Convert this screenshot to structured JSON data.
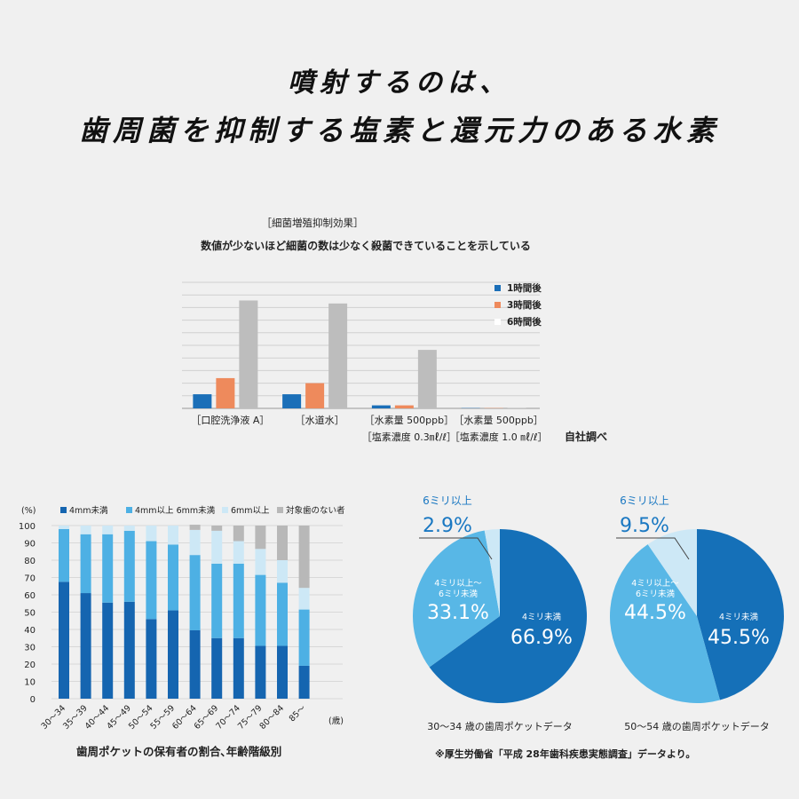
{
  "headline": {
    "line1": "噴射するのは、",
    "line2": "歯周菌を抑制する塩素と還元力のある水素"
  },
  "chart_data": [
    {
      "type": "bar",
      "title": "［細菌増殖抑制効果］",
      "subtitle": "数値が少ないほど細菌の数は少なく殺菌できていることを示している",
      "categories": [
        "［口腔洗浄液 A］",
        "［水道水］",
        "［水素量 500ppb］［塩素濃度 0.3㎖/ℓ］",
        "［水素量 500ppb］［塩素濃度 1.0 ㎖/ℓ］"
      ],
      "category_lines": [
        [
          "［口腔洗浄液 A］"
        ],
        [
          "［水道水］"
        ],
        [
          "［水素量 500ppb］",
          "［塩素濃度 0.3㎖/ℓ］"
        ],
        [
          "［水素量 500ppb］",
          "［塩素濃度 1.0 ㎖/ℓ］"
        ]
      ],
      "series": [
        {
          "name": "1時間後",
          "values": [
            14,
            14,
            3,
            0.3
          ],
          "color": "#1b6fb8"
        },
        {
          "name": "3時間後",
          "values": [
            30,
            25,
            3,
            0.3
          ],
          "color": "#ee8a5c"
        },
        {
          "name": "6時間後",
          "values": [
            107,
            104,
            58,
            0.5
          ],
          "color": "#bdbdbd"
        }
      ],
      "ylim": [
        0,
        125
      ],
      "gridlines": 11,
      "legend_swatch_colors": [
        "#1b6fb8",
        "#ee8a5c",
        "#ffffff"
      ],
      "note": "自社調べ"
    },
    {
      "type": "bar",
      "stacked": true,
      "title": "歯周ポケットの保有者の割合､年齢階級別",
      "unit_label": "(%)",
      "x_unit": "(歳)",
      "categories": [
        "30～34",
        "35～39",
        "40～44",
        "45～49",
        "50～54",
        "55～59",
        "60～64",
        "65～69",
        "70～74",
        "75～79",
        "80～84",
        "85～"
      ],
      "series": [
        {
          "name": "4mm未満",
          "values": [
            67.5,
            61,
            55.5,
            56,
            46,
            51,
            39.5,
            35,
            35,
            30.5,
            30.5,
            19
          ],
          "color": "#1565b0"
        },
        {
          "name": "4mm以上 6mm未満",
          "values": [
            30.5,
            34,
            39.5,
            41,
            45,
            38,
            43.5,
            43,
            43,
            41,
            36.5,
            32.5
          ],
          "color": "#4db0e4"
        },
        {
          "name": "6mm以上",
          "values": [
            2,
            5,
            5,
            3,
            9,
            11,
            14.5,
            19,
            13,
            15,
            13,
            12.5
          ],
          "color": "#cde8f6"
        },
        {
          "name": "対象歯のない者",
          "values": [
            0,
            0,
            0,
            0,
            0,
            0,
            3,
            3,
            9,
            13.5,
            20,
            36
          ],
          "color": "#b8b8b8"
        }
      ],
      "yticks": [
        "0",
        "10",
        "20",
        "30",
        "40",
        "50",
        "60",
        "70",
        "80",
        "90",
        "100"
      ],
      "ylim": [
        0,
        100
      ]
    },
    {
      "type": "pie",
      "title": "30～34 歳の歯周ポケットデータ",
      "slices": [
        {
          "label_lines": [
            "4ミリ未満"
          ],
          "value_label": "66.9%",
          "value": 66.9,
          "color": "#1570b8"
        },
        {
          "label_lines": [
            "4ミリ以上～",
            "6ミリ未満"
          ],
          "value_label": "33.1%",
          "value": 33.1,
          "color": "#58b7e6"
        },
        {
          "label_lines": [
            "6ミリ以上"
          ],
          "value_label": "2.9%",
          "value": 2.9,
          "color": "#cde8f6"
        }
      ]
    },
    {
      "type": "pie",
      "title": "50～54 歳の歯周ポケットデータ",
      "slices": [
        {
          "label_lines": [
            "4ミリ未満"
          ],
          "value_label": "45.5%",
          "value": 45.5,
          "color": "#1570b8"
        },
        {
          "label_lines": [
            "4ミリ以上～",
            "6ミリ未満"
          ],
          "value_label": "44.5%",
          "value": 44.5,
          "color": "#58b7e6"
        },
        {
          "label_lines": [
            "6ミリ以上"
          ],
          "value_label": "9.5%",
          "value": 9.5,
          "color": "#cde8f6"
        }
      ]
    }
  ],
  "source_note": "※厚生労働省「平成 28年歯科疾患実態調査」データより。"
}
